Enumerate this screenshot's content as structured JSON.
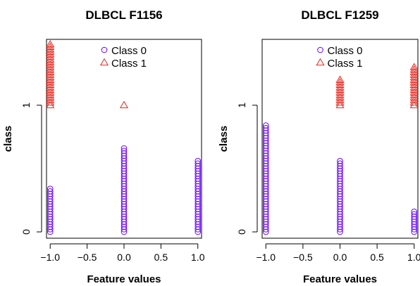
{
  "chart_data": [
    {
      "type": "scatter",
      "title": "DLBCL F1156",
      "xlabel": "Feature values",
      "ylabel": "class",
      "xlim": [
        -1.05,
        1.05
      ],
      "ylim": [
        -0.05,
        1.52
      ],
      "xticks": [
        -1.0,
        -0.5,
        0.0,
        0.5,
        1.0
      ],
      "xtick_labels": [
        "−1.0",
        "−0.5",
        "0.0",
        "0.5",
        "1.0"
      ],
      "yticks": [
        0,
        1
      ],
      "ytick_labels": [
        "0",
        "1"
      ],
      "legend_position": "top-center",
      "series": [
        {
          "name": "Class 0",
          "marker": "circle",
          "color": "#6a00ff",
          "stacks": [
            {
              "x": -1.0,
              "y_min": 0.0,
              "y_max": 0.34,
              "step": 0.02
            },
            {
              "x": 0.0,
              "y_min": 0.0,
              "y_max": 0.65,
              "step": 0.02
            },
            {
              "x": 1.0,
              "y_min": 0.0,
              "y_max": 0.55,
              "step": 0.02
            }
          ]
        },
        {
          "name": "Class 1",
          "marker": "triangle",
          "color": "#e8231a",
          "stacks": [
            {
              "x": -1.0,
              "y_min": 1.0,
              "y_max": 1.48,
              "step": 0.02
            },
            {
              "x": 0.0,
              "y_min": 1.0,
              "y_max": 1.0,
              "step": 0.02
            }
          ]
        }
      ]
    },
    {
      "type": "scatter",
      "title": "DLBCL F1259",
      "xlabel": "Feature values",
      "ylabel": "class",
      "xlim": [
        -1.05,
        1.05
      ],
      "ylim": [
        -0.05,
        1.52
      ],
      "xticks": [
        -1.0,
        -0.5,
        0.0,
        0.5,
        1.0
      ],
      "xtick_labels": [
        "−1.0",
        "−0.5",
        "0.0",
        "0.5",
        "1.0"
      ],
      "yticks": [
        0,
        1
      ],
      "ytick_labels": [
        "0",
        "1"
      ],
      "legend_position": "top-center",
      "series": [
        {
          "name": "Class 0",
          "marker": "circle",
          "color": "#6a00ff",
          "stacks": [
            {
              "x": -1.0,
              "y_min": 0.0,
              "y_max": 0.83,
              "step": 0.02
            },
            {
              "x": 0.0,
              "y_min": 0.0,
              "y_max": 0.55,
              "step": 0.02
            },
            {
              "x": 1.0,
              "y_min": 0.0,
              "y_max": 0.15,
              "step": 0.02
            }
          ]
        },
        {
          "name": "Class 1",
          "marker": "triangle",
          "color": "#e8231a",
          "stacks": [
            {
              "x": 0.0,
              "y_min": 1.0,
              "y_max": 1.2,
              "step": 0.02
            },
            {
              "x": 1.0,
              "y_min": 1.0,
              "y_max": 1.29,
              "step": 0.02
            }
          ]
        }
      ]
    }
  ]
}
